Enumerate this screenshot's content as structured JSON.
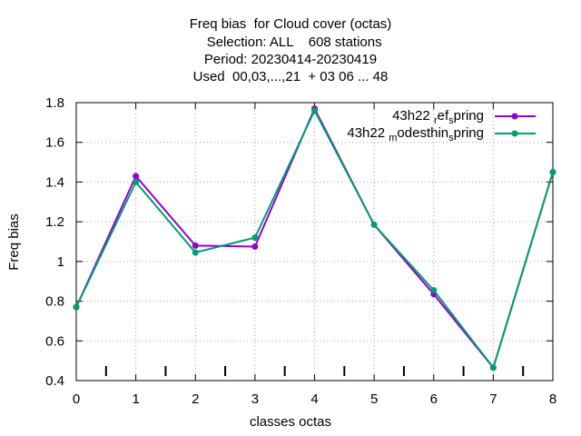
{
  "chart_data": {
    "type": "line",
    "title_lines": [
      "Freq bias  for Cloud cover (octas)",
      "  Selection: ALL    608 stations",
      "Period: 20230414-20230419",
      "Used  00,03,...,21  + 03 06 ... 48"
    ],
    "xlabel": "classes octas",
    "ylabel": "Freq bias",
    "xlim": [
      0,
      8
    ],
    "ylim": [
      0.4,
      1.8
    ],
    "x_ticks": [
      "0",
      "1",
      "2",
      "3",
      "4",
      "5",
      "6",
      "7",
      "8"
    ],
    "y_ticks": [
      "0.4",
      "0.6",
      "0.8",
      "1",
      "1.2",
      "1.4",
      "1.6",
      "1.8"
    ],
    "grid": true,
    "legend_placement": "top-right",
    "x": [
      0,
      1,
      2,
      3,
      4,
      5,
      6,
      7,
      8
    ],
    "series": [
      {
        "name": "43h22 ref spring",
        "legend_parts": [
          "43h22 ",
          "r",
          "ef",
          "s",
          "pring"
        ],
        "color": "#9400d3",
        "values": [
          0.77,
          1.43,
          1.08,
          1.075,
          1.77,
          1.185,
          0.835,
          0.465,
          1.45
        ]
      },
      {
        "name": "43h22 modesthin spring",
        "legend_parts": [
          "43h22 ",
          "m",
          "odesthin",
          "s",
          "pring"
        ],
        "color": "#009e73",
        "values": [
          0.77,
          1.4,
          1.045,
          1.12,
          1.76,
          1.185,
          0.855,
          0.465,
          1.45
        ]
      }
    ]
  }
}
